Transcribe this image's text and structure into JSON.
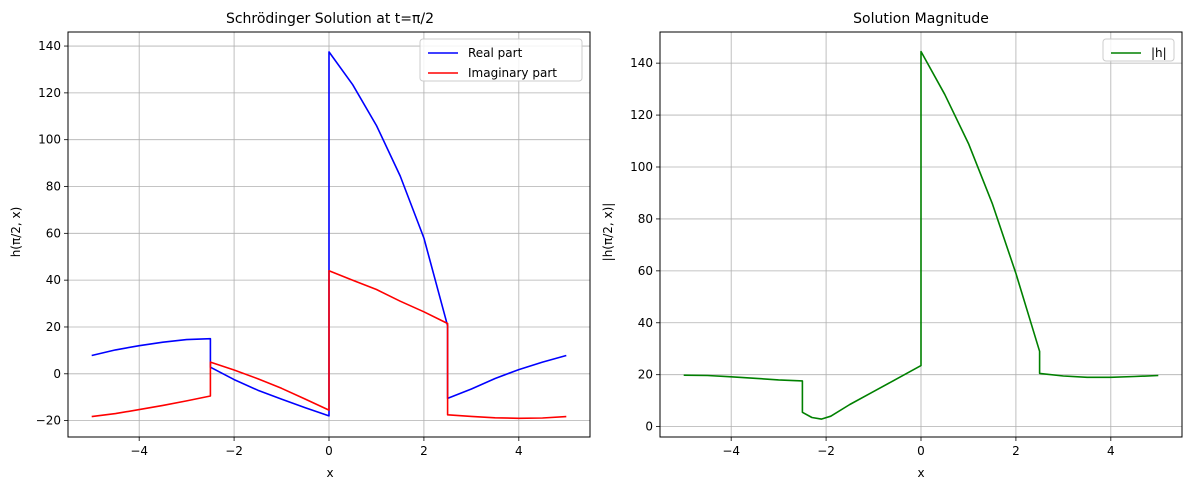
{
  "chart_data": [
    {
      "type": "line",
      "title": "Schrödinger Solution at t=π/2",
      "xlabel": "x",
      "ylabel": "h(π/2, x)",
      "xlim": [
        -5.5,
        5.5
      ],
      "ylim": [
        -27,
        146
      ],
      "xticks": [
        -4,
        -2,
        0,
        2,
        4
      ],
      "yticks": [
        -20,
        0,
        20,
        40,
        60,
        80,
        100,
        120,
        140
      ],
      "xtick_labels": [
        "−4",
        "−2",
        "0",
        "2",
        "4"
      ],
      "ytick_labels": [
        "−20",
        "0",
        "20",
        "40",
        "60",
        "80",
        "100",
        "120",
        "140"
      ],
      "grid": true,
      "legend": "top-right",
      "series": [
        {
          "name": "Real part",
          "color": "#0000ff",
          "x": [
            -5,
            -4.5,
            -4,
            -3.5,
            -3,
            -2.5,
            -2.5,
            -2,
            -1.5,
            -1,
            -0.5,
            0,
            0,
            0.5,
            1,
            1.5,
            2,
            2.5,
            2.5,
            3,
            3.5,
            4,
            4.5,
            5
          ],
          "y": [
            7.8,
            10.2,
            12.0,
            13.5,
            14.6,
            15.0,
            2.8,
            -2.5,
            -7.0,
            -10.8,
            -14.5,
            -18.0,
            137.5,
            123.5,
            106.0,
            84.5,
            58.0,
            20.5,
            -10.5,
            -6.5,
            -2.0,
            1.8,
            5.0,
            7.8
          ]
        },
        {
          "name": "Imaginary part",
          "color": "#ff0000",
          "x": [
            -5,
            -4.5,
            -4,
            -3.5,
            -3,
            -2.5,
            -2.5,
            -2,
            -1.5,
            -1,
            -0.5,
            0,
            0,
            0.5,
            1,
            1.5,
            2,
            2.5,
            2.5,
            3,
            3.5,
            4,
            4.5,
            5
          ],
          "y": [
            -18.3,
            -17.0,
            -15.3,
            -13.5,
            -11.6,
            -9.5,
            5.0,
            1.6,
            -2.1,
            -6.2,
            -10.8,
            -15.5,
            44.0,
            40.0,
            36.0,
            31.0,
            26.5,
            21.5,
            -17.5,
            -18.2,
            -18.8,
            -19.0,
            -18.9,
            -18.3
          ]
        }
      ]
    },
    {
      "type": "line",
      "title": "Solution Magnitude",
      "xlabel": "x",
      "ylabel": "|h(π/2, x)|",
      "xlim": [
        -5.5,
        5.5
      ],
      "ylim": [
        -4,
        152
      ],
      "xticks": [
        -4,
        -2,
        0,
        2,
        4
      ],
      "yticks": [
        0,
        20,
        40,
        60,
        80,
        100,
        120,
        140
      ],
      "xtick_labels": [
        "−4",
        "−2",
        "0",
        "2",
        "4"
      ],
      "ytick_labels": [
        "0",
        "20",
        "40",
        "60",
        "80",
        "100",
        "120",
        "140"
      ],
      "grid": true,
      "legend": "top-right",
      "series": [
        {
          "name": "|h|",
          "color": "#008000",
          "x": [
            -5,
            -4.5,
            -4,
            -3.5,
            -3,
            -2.5,
            -2.5,
            -2.3,
            -2.1,
            -1.9,
            -1.5,
            -1,
            -0.5,
            0,
            0,
            0.5,
            1,
            1.5,
            2,
            2.5,
            2.5,
            3,
            3.5,
            4,
            4.5,
            5
          ],
          "y": [
            19.8,
            19.7,
            19.2,
            18.6,
            18.0,
            17.6,
            5.5,
            3.5,
            2.9,
            4.0,
            8.5,
            13.5,
            18.5,
            23.5,
            144.5,
            128.0,
            109.0,
            86.0,
            59.0,
            29.0,
            20.5,
            19.5,
            19.0,
            19.0,
            19.3,
            19.7
          ]
        }
      ]
    }
  ]
}
